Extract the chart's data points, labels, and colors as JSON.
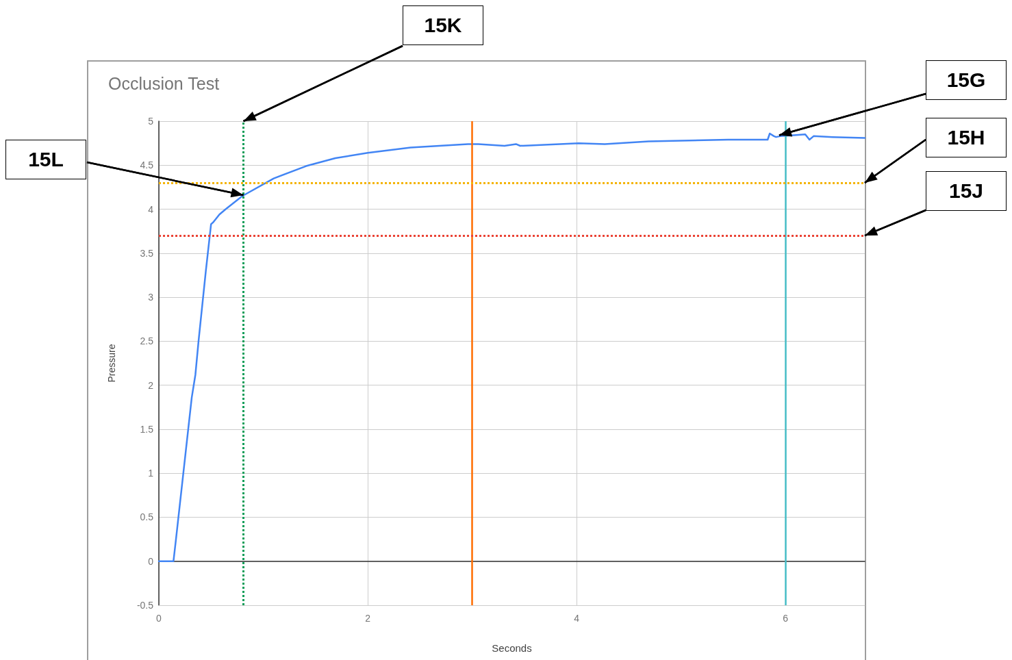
{
  "chart_data": {
    "type": "line",
    "title": "Occlusion Test",
    "xlabel": "Seconds",
    "ylabel": "Pressure",
    "x": [
      0,
      0.14,
      0.164,
      0.255,
      0.315,
      0.35,
      0.38,
      0.45,
      0.5,
      0.52,
      0.58,
      0.64,
      0.8,
      1.1,
      1.41,
      1.69,
      2.0,
      2.41,
      2.96,
      3.06,
      3.31,
      3.42,
      3.46,
      4.02,
      4.27,
      4.69,
      5.45,
      5.83,
      5.85,
      5.89,
      5.91,
      5.95,
      6.08,
      6.19,
      6.23,
      6.27,
      6.45,
      6.76
    ],
    "values": [
      0,
      0,
      0.25,
      1.22,
      1.86,
      2.12,
      2.5,
      3.3,
      3.83,
      3.85,
      3.94,
      4.0,
      4.15,
      4.35,
      4.49,
      4.58,
      4.64,
      4.7,
      4.74,
      4.74,
      4.72,
      4.74,
      4.72,
      4.75,
      4.74,
      4.77,
      4.79,
      4.79,
      4.86,
      4.83,
      4.82,
      4.83,
      4.84,
      4.85,
      4.79,
      4.83,
      4.82,
      4.81
    ],
    "color": "#4285f4",
    "xlim": [
      0,
      6.76
    ],
    "xticks": [
      0,
      2,
      4,
      6
    ],
    "ylim": [
      -0.5,
      5
    ],
    "yticks": [
      -0.5,
      0,
      0.5,
      1,
      1.5,
      2,
      2.5,
      3,
      3.5,
      4,
      4.5,
      5
    ],
    "grid": true,
    "ref_lines": [
      {
        "axis": "x",
        "value": 0.81,
        "color": "#0f9d58",
        "line_style": "dotted"
      },
      {
        "axis": "x",
        "value": 3,
        "color": "#ff6d00",
        "line_style": "solid"
      },
      {
        "axis": "x",
        "value": 6,
        "color": "#46bdc6",
        "line_style": "solid"
      },
      {
        "axis": "y",
        "value": 4.3,
        "color": "#f4b400",
        "line_style": "dotted"
      },
      {
        "axis": "y",
        "value": 3.7,
        "color": "#ea4335",
        "line_style": "dotted"
      }
    ],
    "annotations": [
      {
        "text": "15K",
        "x": 0.81,
        "y": 5
      },
      {
        "text": "15L",
        "x": 0.81,
        "y": 4.16
      },
      {
        "text": "15G",
        "x": 5.94,
        "y": 4.84
      },
      {
        "text": "15H",
        "x": 6.76,
        "y": 4.3
      },
      {
        "text": "15J",
        "x": 6.76,
        "y": 3.7
      }
    ]
  }
}
